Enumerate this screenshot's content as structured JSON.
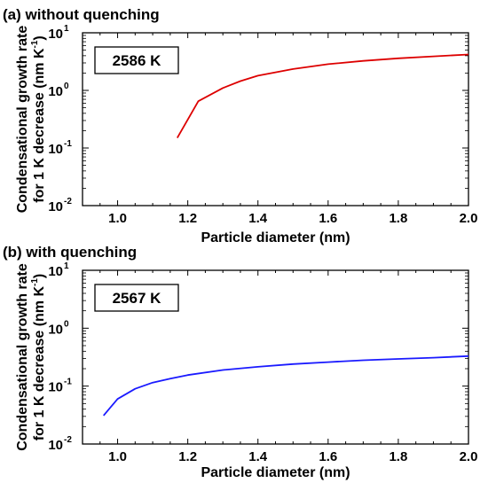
{
  "chart_data": [
    {
      "type": "line",
      "panel_label": "(a) without quenching",
      "box_label": "2586 K",
      "xlabel": "Particle diameter (nm)",
      "ylabel_line1": "Condensational growth rate",
      "ylabel_line2": "for 1 K decrease (nm K",
      "ylabel_sup": "-1",
      "ylabel_close": ")",
      "xlim": [
        0.9,
        2.0
      ],
      "ylim": [
        0.01,
        10
      ],
      "yscale": "log",
      "xticks": [
        "1.0",
        "1.2",
        "1.4",
        "1.6",
        "1.8",
        "2.0"
      ],
      "yticks": [
        {
          "base": "10",
          "exp": "-2"
        },
        {
          "base": "10",
          "exp": "-1"
        },
        {
          "base": "10",
          "exp": "0"
        },
        {
          "base": "10",
          "exp": "1"
        }
      ],
      "series": [
        {
          "color": "#dd0000",
          "x": [
            1.17,
            1.23,
            1.3,
            1.35,
            1.4,
            1.5,
            1.6,
            1.7,
            1.8,
            1.9,
            2.0
          ],
          "y": [
            0.15,
            0.65,
            1.1,
            1.45,
            1.8,
            2.35,
            2.85,
            3.25,
            3.6,
            3.9,
            4.2
          ]
        }
      ]
    },
    {
      "type": "line",
      "panel_label": "(b) with quenching",
      "box_label": "2567 K",
      "xlabel": "Particle diameter (nm)",
      "ylabel_line1": "Condensational growth rate",
      "ylabel_line2": "for 1 K decrease (nm K",
      "ylabel_sup": "-1",
      "ylabel_close": ")",
      "xlim": [
        0.9,
        2.0
      ],
      "ylim": [
        0.01,
        10
      ],
      "yscale": "log",
      "xticks": [
        "1.0",
        "1.2",
        "1.4",
        "1.6",
        "1.8",
        "2.0"
      ],
      "yticks": [
        {
          "base": "10",
          "exp": "-2"
        },
        {
          "base": "10",
          "exp": "-1"
        },
        {
          "base": "10",
          "exp": "0"
        },
        {
          "base": "10",
          "exp": "1"
        }
      ],
      "series": [
        {
          "color": "#1a1aff",
          "x": [
            0.96,
            1.0,
            1.05,
            1.1,
            1.15,
            1.2,
            1.3,
            1.4,
            1.5,
            1.6,
            1.7,
            1.8,
            1.9,
            2.0
          ],
          "y": [
            0.031,
            0.06,
            0.09,
            0.115,
            0.135,
            0.155,
            0.19,
            0.215,
            0.24,
            0.26,
            0.28,
            0.295,
            0.31,
            0.33
          ]
        }
      ]
    }
  ]
}
